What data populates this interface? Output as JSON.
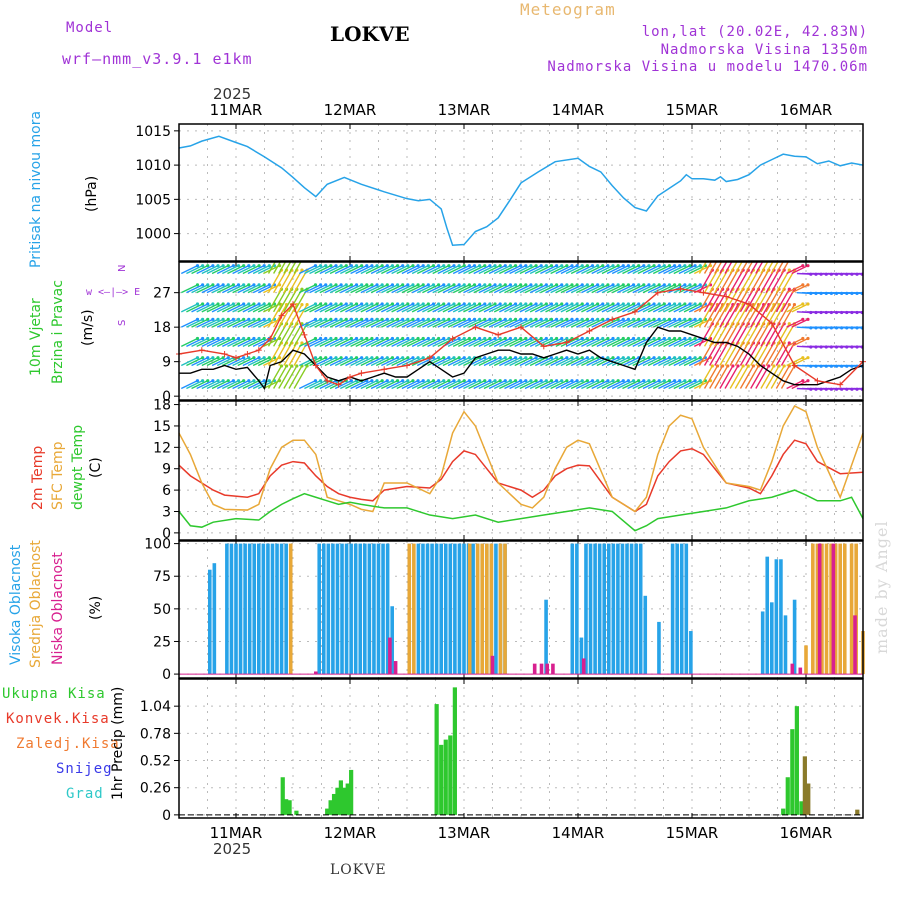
{
  "header": {
    "model_label": "Model",
    "model_name": "wrf—nmm_v3.9.1  e1km",
    "station": "LOKVE",
    "product": "Meteogram",
    "coords": "lon,lat (20.02E, 42.83N)",
    "altitude": "Nadmorska Visina 1350m",
    "model_altitude": "Nadmorska Visina u modelu 1470.06m"
  },
  "footer": {
    "station": "LOKVE",
    "credit": "made by Angel"
  },
  "time_axis": {
    "year": "2025",
    "days": [
      "11MAR",
      "12MAR",
      "13MAR",
      "14MAR",
      "15MAR",
      "16MAR"
    ],
    "day_positions_days": [
      0.5,
      1.5,
      2.5,
      3.5,
      4.5,
      5.5
    ],
    "range_days": [
      0,
      6
    ]
  },
  "panels": {
    "pressure": {
      "label1": "Pritisak na nivou mora",
      "label2": "(hPa)",
      "color": "#27a3e8"
    },
    "wind": {
      "label1": "10m Vjetar",
      "label2": "Brzina i Pravac",
      "label3": "(m/s)",
      "compass": "w <—|—> E",
      "compass_ns": "N",
      "compass_s": "S"
    },
    "temp": {
      "label1": "2m Temp",
      "label2": "SFC Temp",
      "label3": "dewpt Temp",
      "label4": "(C)"
    },
    "cloud": {
      "label1": "Visoka Oblacnost",
      "label2": "Srednja Oblacnost",
      "label3": "Niska Oblacnost",
      "label4": "(%)"
    },
    "precip": {
      "label1": "Ukupna Kisa",
      "label2": "Konvek.Kisa",
      "label3": "Zaledj.Kisa",
      "label4": "Snijeg",
      "label5": "Grad",
      "label6": "1hr Precip (mm)"
    }
  },
  "chart_data": [
    {
      "type": "line",
      "name": "pressure",
      "ylabel": "(hPa)",
      "ylim": [
        996,
        1016
      ],
      "yticks": [
        1000,
        1005,
        1010,
        1015
      ],
      "grid": true,
      "series": [
        {
          "name": "Pritisak na nivou mora",
          "color": "#27a3e8",
          "x": [
            0.0,
            0.1,
            0.2,
            0.35,
            0.5,
            0.6,
            0.75,
            0.9,
            1.0,
            1.1,
            1.2,
            1.3,
            1.45,
            1.6,
            1.8,
            2.0,
            2.1,
            2.2,
            2.3,
            2.35,
            2.4,
            2.5,
            2.6,
            2.7,
            2.8,
            2.9,
            3.0,
            3.15,
            3.3,
            3.5,
            3.6,
            3.7,
            3.8,
            3.9,
            4.0,
            4.1,
            4.2,
            4.3,
            4.4,
            4.45,
            4.5,
            4.6,
            4.7,
            4.75,
            4.8,
            4.9,
            5.0,
            5.1,
            5.2,
            5.3,
            5.4,
            5.5,
            5.6,
            5.7,
            5.8,
            5.9,
            6.0
          ],
          "y": [
            1012.5,
            1012.8,
            1013.5,
            1014.2,
            1013.3,
            1012.7,
            1011.2,
            1009.6,
            1008.2,
            1006.7,
            1005.4,
            1007.2,
            1008.2,
            1007.2,
            1006.1,
            1005.1,
            1004.8,
            1005.0,
            1003.6,
            1000.8,
            998.3,
            998.4,
            1000.3,
            1001.0,
            1002.3,
            1004.8,
            1007.4,
            1009.0,
            1010.5,
            1011.0,
            1009.8,
            1009.0,
            1007.0,
            1005.2,
            1003.8,
            1003.3,
            1005.5,
            1006.6,
            1007.7,
            1008.6,
            1008.0,
            1008.0,
            1007.8,
            1008.3,
            1007.6,
            1007.9,
            1008.6,
            1010.0,
            1010.8,
            1011.6,
            1011.3,
            1011.2,
            1010.2,
            1010.6,
            1009.9,
            1010.3,
            1010.0
          ]
        }
      ]
    },
    {
      "type": "line",
      "name": "wind",
      "ylabel": "(m/s)",
      "ylim": [
        -1,
        35
      ],
      "yticks": [
        0,
        9,
        18,
        27
      ],
      "grid": true,
      "series": [
        {
          "name": "wind speed",
          "color": "#000000",
          "x": [
            0.0,
            0.1,
            0.2,
            0.3,
            0.4,
            0.5,
            0.6,
            0.7,
            0.75,
            0.8,
            0.9,
            1.0,
            1.1,
            1.2,
            1.3,
            1.4,
            1.5,
            1.6,
            1.7,
            1.8,
            1.9,
            2.0,
            2.1,
            2.2,
            2.3,
            2.4,
            2.5,
            2.6,
            2.7,
            2.8,
            2.9,
            3.0,
            3.1,
            3.2,
            3.3,
            3.4,
            3.5,
            3.6,
            3.7,
            3.8,
            3.9,
            4.0,
            4.1,
            4.2,
            4.3,
            4.4,
            4.5,
            4.6,
            4.7,
            4.8,
            4.9,
            5.0,
            5.1,
            5.2,
            5.3,
            5.4,
            5.5,
            5.6,
            5.7,
            5.8,
            5.9,
            6.0
          ],
          "y": [
            6,
            6,
            7,
            7,
            8,
            7,
            7.5,
            4,
            2,
            8,
            9,
            12,
            11,
            8,
            5,
            4,
            5,
            4,
            5,
            6,
            5,
            5,
            7,
            9,
            7,
            5,
            6,
            10,
            11,
            12,
            12,
            11,
            11,
            10,
            11,
            12,
            11,
            12,
            10,
            9,
            8,
            7,
            14,
            18,
            17,
            17,
            16,
            15,
            14,
            14,
            13,
            11,
            8,
            6,
            4,
            3,
            3,
            3,
            4,
            5,
            7,
            8
          ]
        },
        {
          "name": "max wind",
          "color": "#e83a2a",
          "x": [
            0.0,
            0.2,
            0.4,
            0.5,
            0.6,
            0.7,
            0.8,
            0.9,
            1.0,
            1.1,
            1.2,
            1.3,
            1.4,
            1.5,
            1.6,
            1.8,
            2.0,
            2.2,
            2.4,
            2.6,
            2.8,
            3.0,
            3.2,
            3.4,
            3.6,
            3.8,
            4.0,
            4.2,
            4.4,
            4.6,
            4.8,
            5.0,
            5.2,
            5.4,
            5.6,
            5.8,
            6.0
          ],
          "y": [
            11,
            12,
            11,
            10,
            11,
            12,
            15,
            21,
            24,
            16,
            8,
            4,
            3,
            5,
            6,
            7,
            8,
            10,
            15,
            18,
            16,
            18,
            13,
            14,
            17,
            20,
            22,
            27,
            28,
            27,
            26,
            24,
            19,
            8,
            4,
            3,
            9
          ]
        }
      ]
    },
    {
      "type": "line",
      "name": "temperature",
      "ylabel": "(C)",
      "ylim": [
        -1,
        18.5
      ],
      "yticks": [
        0,
        3,
        6,
        9,
        12,
        15,
        18
      ],
      "grid": true,
      "series": [
        {
          "name": "2m Temp",
          "color": "#e83a2a",
          "x": [
            0.0,
            0.1,
            0.2,
            0.3,
            0.4,
            0.6,
            0.7,
            0.8,
            0.9,
            1.0,
            1.1,
            1.2,
            1.3,
            1.4,
            1.5,
            1.6,
            1.7,
            1.8,
            2.0,
            2.2,
            2.3,
            2.4,
            2.5,
            2.6,
            2.8,
            3.0,
            3.1,
            3.2,
            3.3,
            3.4,
            3.5,
            3.6,
            3.8,
            4.0,
            4.1,
            4.2,
            4.3,
            4.4,
            4.5,
            4.6,
            4.8,
            5.0,
            5.1,
            5.2,
            5.3,
            5.4,
            5.5,
            5.6,
            5.8,
            6.0
          ],
          "y": [
            9.5,
            8,
            7,
            6,
            5.3,
            5,
            5.5,
            8,
            9.5,
            10,
            9.8,
            8,
            6.5,
            5.5,
            5,
            4.7,
            4.5,
            6,
            6.5,
            6.3,
            7.5,
            10,
            11.5,
            11,
            7,
            6,
            5,
            6,
            8,
            9,
            9.5,
            9.4,
            5,
            3,
            4,
            8,
            10,
            11.5,
            11.8,
            11,
            7,
            6.3,
            5.5,
            8,
            11,
            13,
            12.5,
            10,
            8.3,
            8.5
          ]
        },
        {
          "name": "SFC Temp",
          "color": "#e8a838",
          "x": [
            0.0,
            0.1,
            0.2,
            0.3,
            0.4,
            0.6,
            0.7,
            0.8,
            0.9,
            1.0,
            1.1,
            1.2,
            1.3,
            1.4,
            1.5,
            1.6,
            1.7,
            1.8,
            2.0,
            2.2,
            2.3,
            2.4,
            2.5,
            2.6,
            2.8,
            3.0,
            3.1,
            3.2,
            3.3,
            3.4,
            3.5,
            3.6,
            3.8,
            4.0,
            4.1,
            4.2,
            4.3,
            4.4,
            4.5,
            4.6,
            4.8,
            5.0,
            5.1,
            5.2,
            5.3,
            5.4,
            5.5,
            5.6,
            5.8,
            6.0
          ],
          "y": [
            14,
            11,
            7,
            4,
            3.3,
            3.2,
            4,
            9,
            12,
            13,
            13,
            11,
            5,
            4.5,
            4,
            3.3,
            3,
            7,
            7,
            5.5,
            8,
            14,
            17,
            15,
            7,
            4,
            3.5,
            5,
            9,
            12,
            13,
            12.5,
            5,
            3,
            5,
            11,
            15,
            16.5,
            16,
            12,
            7,
            6.5,
            6,
            10,
            15,
            17.8,
            17,
            12,
            5,
            14
          ]
        },
        {
          "name": "dewpt Temp",
          "color": "#2ec82e",
          "x": [
            0.0,
            0.1,
            0.2,
            0.3,
            0.5,
            0.7,
            0.8,
            0.9,
            1.0,
            1.1,
            1.2,
            1.3,
            1.4,
            1.5,
            1.6,
            1.8,
            2.0,
            2.2,
            2.4,
            2.6,
            2.8,
            3.0,
            3.2,
            3.4,
            3.6,
            3.8,
            4.0,
            4.1,
            4.2,
            4.4,
            4.6,
            4.8,
            5.0,
            5.2,
            5.4,
            5.5,
            5.6,
            5.8,
            5.9,
            6.0
          ],
          "y": [
            3,
            1,
            0.8,
            1.5,
            2,
            1.8,
            3,
            4,
            4.8,
            5.5,
            5.0,
            4.5,
            4.0,
            4.3,
            4.0,
            3.5,
            3.5,
            2.5,
            2.0,
            2.5,
            1.5,
            2.0,
            2.5,
            3.0,
            3.5,
            3.0,
            0.3,
            1.0,
            2.0,
            2.5,
            3.0,
            3.5,
            4.5,
            5.0,
            6.0,
            5.3,
            4.5,
            4.5,
            5.0,
            2.0
          ]
        }
      ]
    },
    {
      "type": "bar",
      "name": "cloud cover",
      "ylabel": "(%)",
      "ylim": [
        -3,
        102
      ],
      "yticks": [
        0,
        25,
        50,
        75,
        100
      ],
      "grid": true,
      "series": [
        {
          "name": "Visoka Oblacnost",
          "color": "#27a3e8",
          "x": [
            0.27,
            0.31,
            0.42,
            0.46,
            0.5,
            0.54,
            0.58,
            0.62,
            0.66,
            0.7,
            0.74,
            0.78,
            0.82,
            0.86,
            0.9,
            0.94,
            1.23,
            1.27,
            1.31,
            1.35,
            1.39,
            1.43,
            1.47,
            1.51,
            1.55,
            1.59,
            1.63,
            1.67,
            1.71,
            1.75,
            1.79,
            1.83,
            1.87,
            2.1,
            2.14,
            2.18,
            2.22,
            2.26,
            2.3,
            2.34,
            2.38,
            2.42,
            2.46,
            2.5,
            2.54,
            2.58,
            2.62,
            2.66,
            2.7,
            2.74,
            2.78,
            2.82,
            2.86,
            3.22,
            3.45,
            3.49,
            3.53,
            3.57,
            3.61,
            3.65,
            3.69,
            3.73,
            3.77,
            3.81,
            3.85,
            3.89,
            3.93,
            3.97,
            4.01,
            4.05,
            4.09,
            4.21,
            4.33,
            4.37,
            4.41,
            4.45,
            4.49,
            5.12,
            5.16,
            5.2,
            5.24,
            5.28,
            5.32,
            5.4
          ],
          "y": [
            80,
            85,
            100,
            100,
            100,
            100,
            100,
            100,
            100,
            100,
            100,
            100,
            100,
            100,
            100,
            100,
            100,
            100,
            100,
            100,
            100,
            100,
            100,
            100,
            100,
            100,
            100,
            100,
            100,
            100,
            100,
            100,
            52,
            100,
            100,
            100,
            100,
            100,
            100,
            100,
            100,
            100,
            100,
            100,
            100,
            100,
            100,
            100,
            100,
            100,
            100,
            100,
            100,
            57,
            100,
            100,
            28,
            100,
            100,
            100,
            100,
            100,
            100,
            100,
            100,
            100,
            100,
            100,
            100,
            100,
            60,
            40,
            100,
            100,
            100,
            100,
            33,
            48,
            90,
            55,
            88,
            88,
            45,
            57
          ]
        },
        {
          "name": "Srednja Oblacnost",
          "color": "#e8a838",
          "x": [
            0.98,
            2.02,
            2.06,
            2.55,
            2.62,
            2.66,
            2.7,
            2.74,
            2.82,
            2.86,
            5.5,
            5.56,
            5.6,
            5.64,
            5.68,
            5.72,
            5.76,
            5.8,
            5.84,
            5.9,
            5.94,
            6.0
          ],
          "y": [
            100,
            100,
            100,
            100,
            100,
            100,
            100,
            100,
            100,
            100,
            22,
            100,
            100,
            100,
            100,
            100,
            100,
            100,
            100,
            100,
            100,
            33
          ]
        },
        {
          "name": "Niska Oblacnost",
          "color": "#d8208f",
          "x": [
            1.2,
            1.85,
            1.9,
            2.75,
            3.12,
            3.18,
            3.23,
            3.28,
            3.55,
            5.38,
            5.45,
            5.62,
            5.74,
            5.93
          ],
          "y": [
            2,
            28,
            10,
            14,
            8,
            8,
            8,
            8,
            12,
            8,
            5,
            100,
            100,
            45
          ]
        }
      ]
    },
    {
      "type": "bar",
      "name": "precipitation",
      "ylabel": "1hr Precip (mm)",
      "ylim": [
        -0.03,
        1.3
      ],
      "yticks": [
        0,
        0.26,
        0.52,
        0.78,
        1.04
      ],
      "grid": true,
      "series": [
        {
          "name": "Ukupna Kisa",
          "color": "#2ec82e",
          "x": [
            0.91,
            0.94,
            0.97,
            1.03,
            1.3,
            1.33,
            1.36,
            1.39,
            1.42,
            1.45,
            1.48,
            1.51,
            2.26,
            2.3,
            2.34,
            2.38,
            2.42,
            5.3,
            5.34,
            5.38,
            5.42,
            5.46
          ],
          "y": [
            0.36,
            0.15,
            0.14,
            0.04,
            0.06,
            0.14,
            0.2,
            0.26,
            0.33,
            0.26,
            0.3,
            0.43,
            1.06,
            0.67,
            0.72,
            0.76,
            1.22,
            0.06,
            0.36,
            0.82,
            1.04,
            0.13
          ]
        },
        {
          "name": "Snijeg",
          "color": "#8a7a2a",
          "x": [
            5.49,
            5.52,
            5.95
          ],
          "y": [
            0.56,
            0.3,
            0.05
          ]
        }
      ]
    }
  ]
}
